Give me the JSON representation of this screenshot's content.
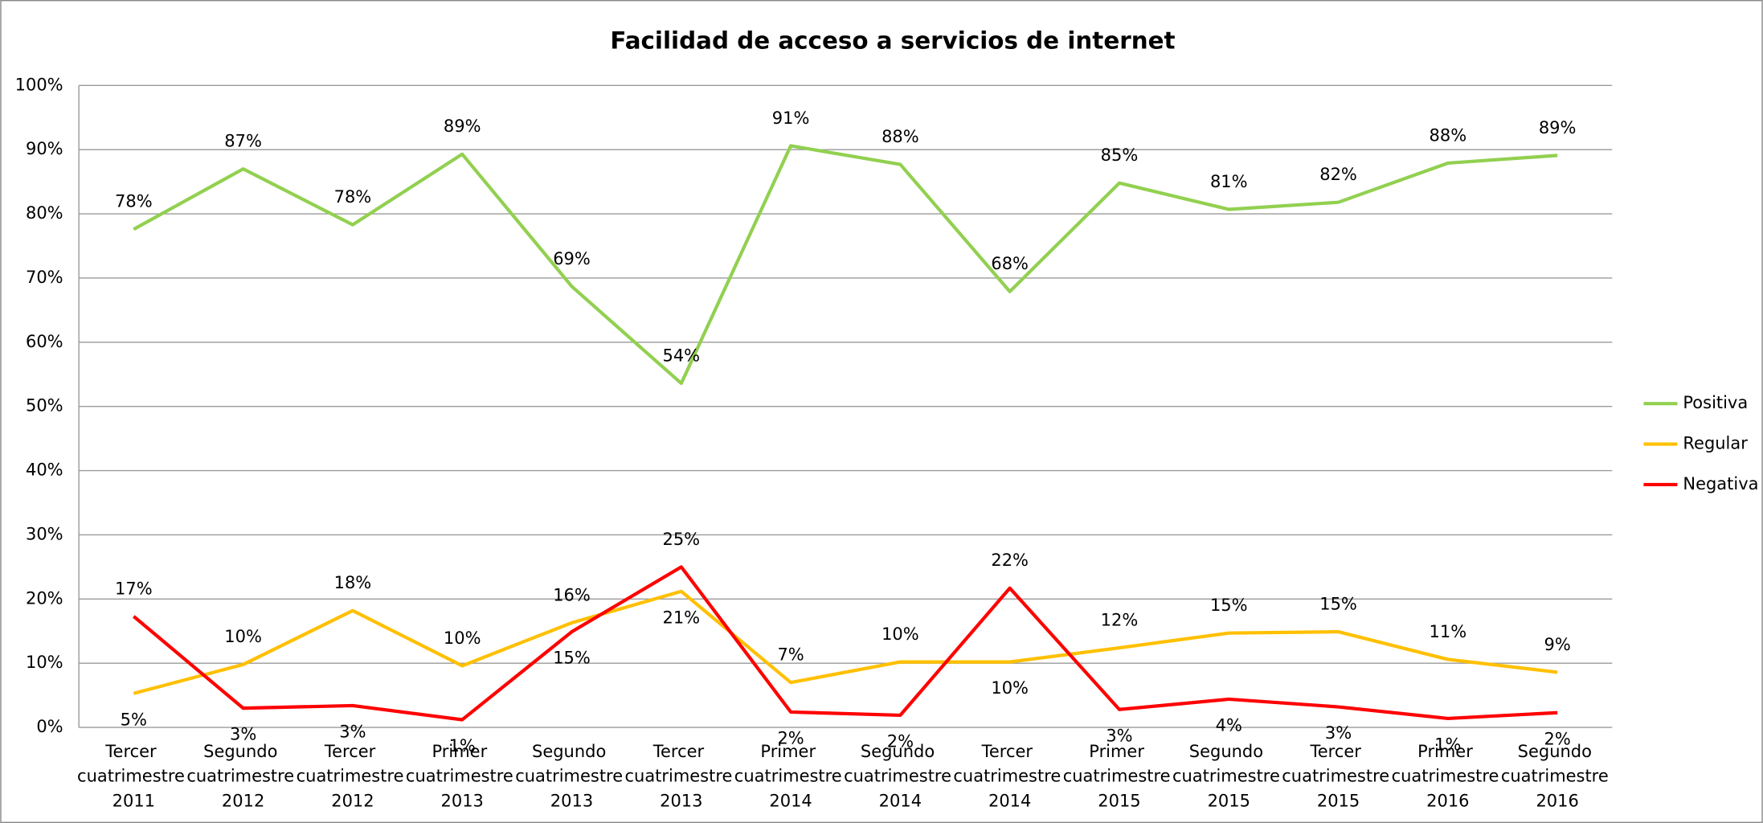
{
  "chart_data": {
    "type": "line",
    "title": "Facilidad de acceso a servicios de internet",
    "categories": [
      "Tercer cuatrimestre 2011",
      "Segundo cuatrimestre 2012",
      "Tercer cuatrimestre 2012",
      "Primer cuatrimestre 2013",
      "Segundo cuatrimestre 2013",
      "Tercer cuatrimestre 2013",
      "Primer cuatrimestre 2014",
      "Segundo cuatrimestre 2014",
      "Tercer cuatrimestre 2014",
      "Primer cuatrimestre 2015",
      "Segundo cuatrimestre 2015",
      "Tercer cuatrimestre 2015",
      "Primer cuatrimestre 2016",
      "Segundo cuatrimestre 2016"
    ],
    "series": [
      {
        "name": "Positiva",
        "color": "#92d050",
        "values": [
          77.6,
          87.0,
          78.3,
          89.3,
          68.7,
          53.6,
          90.6,
          87.7,
          67.9,
          84.8,
          80.7,
          81.8,
          87.9,
          89.1
        ],
        "value_labels": [
          "78%",
          "87%",
          "78%",
          "89%",
          "69%",
          "54%",
          "91%",
          "88%",
          "68%",
          "85%",
          "81%",
          "82%",
          "88%",
          "89%"
        ]
      },
      {
        "name": "Regular",
        "color": "#ffc000",
        "values": [
          5.3,
          9.8,
          18.2,
          9.6,
          16.3,
          21.2,
          7.0,
          10.2,
          10.2,
          12.4,
          14.7,
          14.9,
          10.6,
          8.6
        ],
        "value_labels": [
          "5%",
          "10%",
          "18%",
          "10%",
          "16%",
          "21%",
          "7%",
          "10%",
          "10%",
          "12%",
          "15%",
          "15%",
          "11%",
          "9%"
        ]
      },
      {
        "name": "Negativa",
        "color": "#ff0000",
        "values": [
          17.3,
          3.0,
          3.4,
          1.2,
          14.9,
          25.0,
          2.4,
          1.9,
          21.7,
          2.8,
          4.4,
          3.2,
          1.4,
          2.3
        ],
        "value_labels": [
          "17%",
          "3%",
          "3%",
          "1%",
          "15%",
          "25%",
          "2%",
          "2%",
          "22%",
          "3%",
          "4%",
          "3%",
          "1%",
          "2%"
        ]
      }
    ],
    "ylim": [
      0,
      100
    ],
    "yticks": [
      {
        "value": 0,
        "label": "0%"
      },
      {
        "value": 10,
        "label": "10%"
      },
      {
        "value": 20,
        "label": "20%"
      },
      {
        "value": 30,
        "label": "30%"
      },
      {
        "value": 40,
        "label": "40%"
      },
      {
        "value": 50,
        "label": "50%"
      },
      {
        "value": 60,
        "label": "60%"
      },
      {
        "value": 70,
        "label": "70%"
      },
      {
        "value": 80,
        "label": "80%"
      },
      {
        "value": 90,
        "label": "90%"
      },
      {
        "value": 100,
        "label": "100%"
      }
    ],
    "grid": true,
    "legend": "right"
  }
}
